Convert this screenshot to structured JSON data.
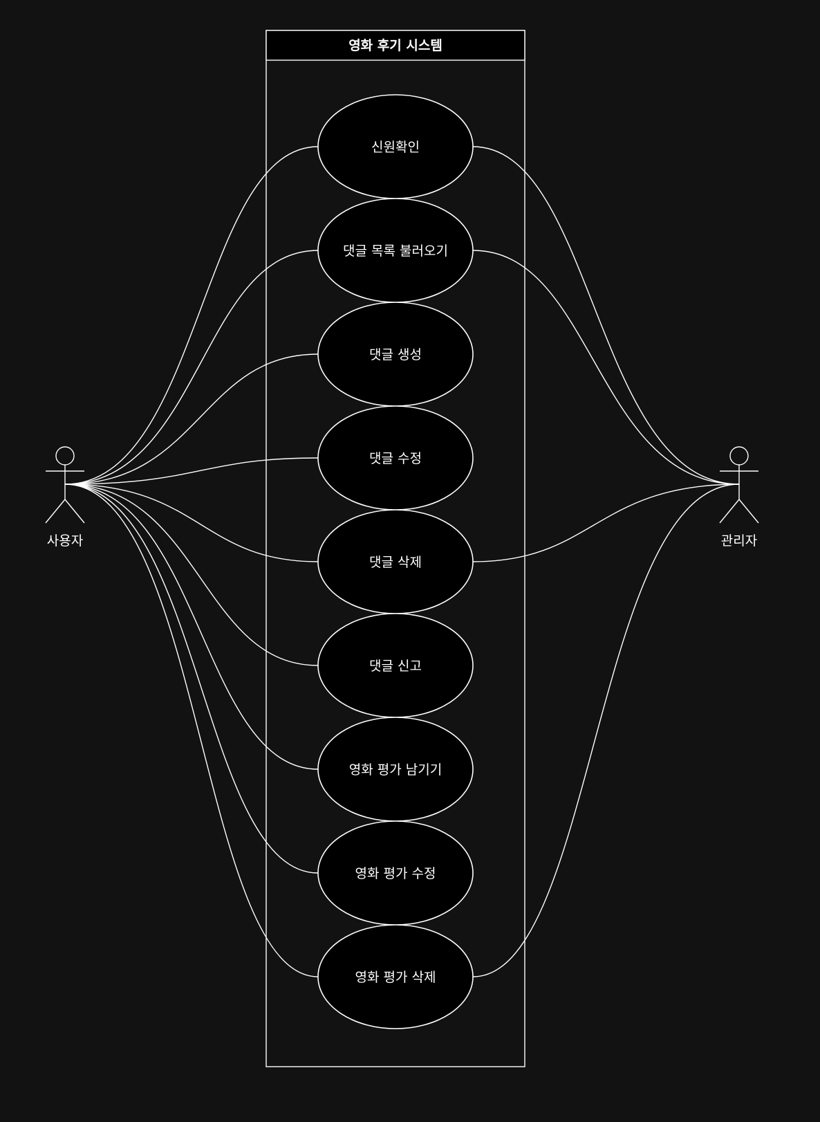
{
  "system": {
    "title": "영화 후기 시스템"
  },
  "actors": {
    "user": {
      "label": "사용자",
      "icon": "stick-figure-icon"
    },
    "admin": {
      "label": "관리자",
      "icon": "stick-figure-icon"
    }
  },
  "use_cases": [
    {
      "id": "uc-identity-check",
      "label": "신원확인",
      "actors": [
        "user",
        "admin"
      ]
    },
    {
      "id": "uc-load-comments",
      "label": "댓글 목록 불러오기",
      "actors": [
        "user",
        "admin"
      ]
    },
    {
      "id": "uc-create-comment",
      "label": "댓글 생성",
      "actors": [
        "user"
      ]
    },
    {
      "id": "uc-edit-comment",
      "label": "댓글 수정",
      "actors": [
        "user"
      ]
    },
    {
      "id": "uc-delete-comment",
      "label": "댓글 삭제",
      "actors": [
        "user",
        "admin"
      ]
    },
    {
      "id": "uc-report-comment",
      "label": "댓글 신고",
      "actors": [
        "user"
      ]
    },
    {
      "id": "uc-leave-rating",
      "label": "영화 평가 남기기",
      "actors": [
        "user"
      ]
    },
    {
      "id": "uc-edit-rating",
      "label": "영화 평가 수정",
      "actors": [
        "user"
      ]
    },
    {
      "id": "uc-delete-rating",
      "label": "영화 평가 삭제",
      "actors": [
        "user",
        "admin"
      ]
    }
  ],
  "colors": {
    "background": "#121212",
    "shape_fill": "#000000",
    "stroke": "#ffffff",
    "text": "#ffffff"
  }
}
